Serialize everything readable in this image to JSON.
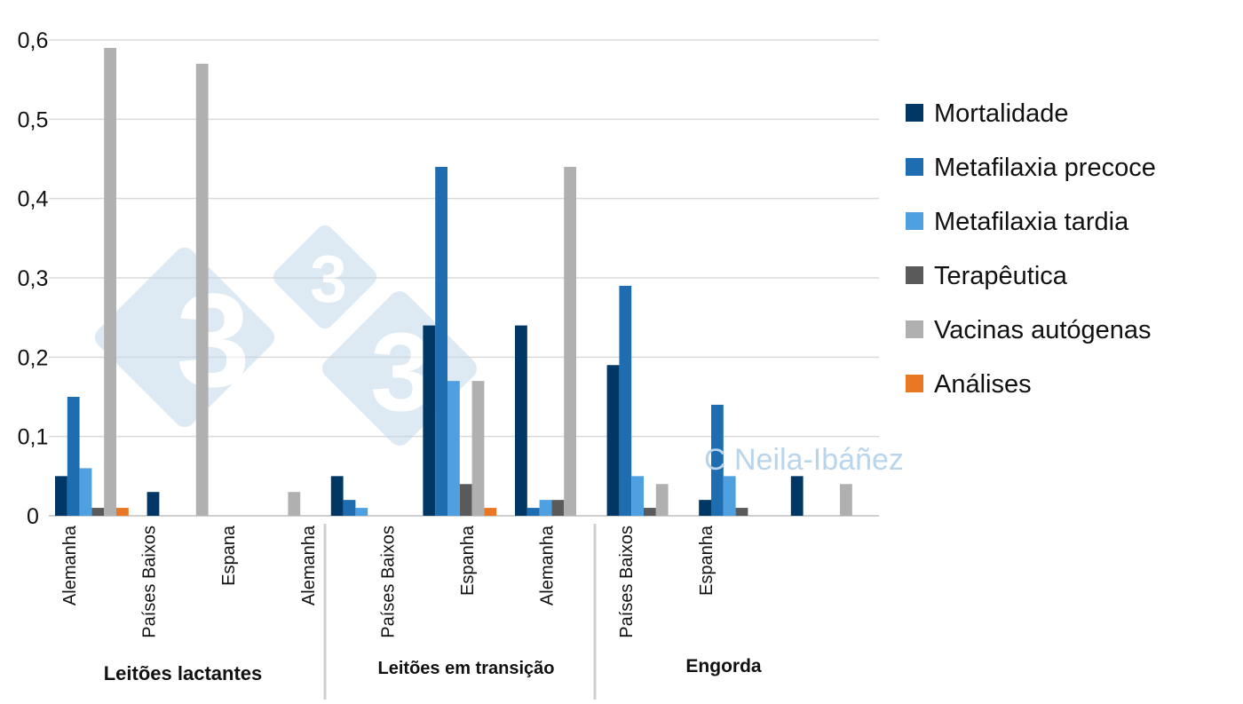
{
  "chart_data": {
    "type": "bar",
    "title": "",
    "xlabel": "",
    "ylabel": "",
    "ylim": [
      0,
      0.6
    ],
    "yticks": [
      "0",
      "0,1",
      "0,2",
      "0,3",
      "0,4",
      "0,5",
      "0,6"
    ],
    "grid": true,
    "legend_position": "right",
    "categories": [
      "Alemanha",
      "Países Baixos",
      "Espana",
      "Alemanha",
      "Países Baixos",
      "Espanha",
      "Alemanha",
      "Países Baixos",
      "Espanha"
    ],
    "groups": [
      {
        "label": "Leitões lactantes"
      },
      {
        "label": "Leitões em transição"
      },
      {
        "label": "Engorda"
      }
    ],
    "series": [
      {
        "name": "Mortalidade",
        "color": "#003764",
        "values": [
          0.05,
          0.03,
          0,
          0.05,
          0.24,
          0.24,
          0.19,
          0.02,
          0.05
        ]
      },
      {
        "name": "Metafilaxia precoce",
        "color": "#1f6db1",
        "values": [
          0.15,
          0,
          0,
          0.02,
          0.44,
          0.01,
          0.29,
          0.14,
          0
        ]
      },
      {
        "name": "Metafilaxia tardia",
        "color": "#4fa0e0",
        "values": [
          0.06,
          0,
          0,
          0.01,
          0.17,
          0.02,
          0.05,
          0.05,
          0
        ]
      },
      {
        "name": "Terapêutica",
        "color": "#5a5a5a",
        "values": [
          0.01,
          0,
          0,
          0,
          0.04,
          0.02,
          0.01,
          0.01,
          0
        ]
      },
      {
        "name": "Vacinas autógenas",
        "color": "#b0b0b0",
        "values": [
          0.59,
          0.57,
          0.03,
          0,
          0.17,
          0.44,
          0.04,
          0,
          0.04
        ]
      },
      {
        "name": "Análises",
        "color": "#ea7723",
        "values": [
          0.01,
          0,
          0,
          0,
          0.01,
          0,
          0,
          0,
          0
        ]
      }
    ]
  },
  "watermark": {
    "text": "C Neila-Ibáñez",
    "logo_text": "3"
  }
}
